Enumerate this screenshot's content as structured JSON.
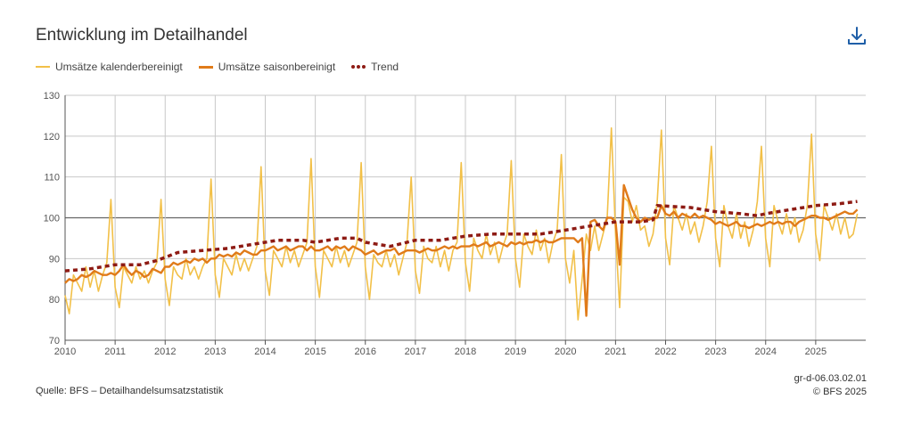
{
  "header": {
    "title": "Entwicklung im Detailhandel",
    "download_icon": "download-icon"
  },
  "legend": {
    "calendar": "Umsätze kalenderbereinigt",
    "seasonal": "Umsätze saisonbereinigt",
    "trend": "Trend"
  },
  "footer": {
    "source": "Quelle: BFS – Detailhandelsumsatzstatistik",
    "code": "gr-d-06.03.02.01",
    "copyright": "© BFS 2025"
  },
  "colors": {
    "calendar": "#f2c048",
    "seasonal": "#e07b1a",
    "trend": "#8e1b14",
    "grid": "#c8c8c8",
    "axis": "#555555"
  },
  "chart_data": {
    "type": "line",
    "title": "Entwicklung im Detailhandel",
    "xlabel": "",
    "ylabel": "",
    "ylim": [
      70,
      130
    ],
    "yticks": [
      70,
      80,
      90,
      100,
      110,
      120,
      130
    ],
    "xlim": [
      2010,
      2026
    ],
    "xticks": [
      2010,
      2011,
      2012,
      2013,
      2014,
      2015,
      2016,
      2017,
      2018,
      2019,
      2020,
      2021,
      2022,
      2023,
      2024,
      2025
    ],
    "grid": true,
    "reference_line": 100,
    "series": [
      {
        "name": "Umsätze kalenderbereinigt",
        "x_start": 2010.0,
        "x_step": 0.08333,
        "values": [
          81,
          76.5,
          86,
          84,
          82,
          88,
          83,
          87,
          82,
          86,
          89,
          104.5,
          83,
          78,
          88,
          86,
          84,
          88,
          85,
          87,
          84,
          87,
          89,
          104.5,
          85,
          78.5,
          88,
          86,
          85,
          90,
          86,
          88,
          85,
          88,
          90,
          109.5,
          86,
          80.5,
          90,
          88,
          86,
          91,
          87,
          90,
          87,
          90,
          93,
          112.5,
          87,
          81,
          92,
          90,
          88,
          93,
          89,
          92,
          88,
          91,
          94,
          114.5,
          88,
          80.5,
          92,
          90,
          88,
          93,
          89,
          92,
          88,
          91,
          94,
          113.5,
          88,
          80,
          91,
          89,
          88,
          92,
          88,
          91,
          86,
          90,
          94,
          110,
          87,
          81.5,
          93,
          90,
          89,
          93,
          88,
          92,
          87,
          92,
          94,
          113.5,
          89,
          82,
          95,
          92,
          90,
          96,
          91,
          94,
          89,
          93,
          96,
          114,
          90,
          83,
          96,
          93,
          91,
          97,
          92,
          95,
          89,
          94,
          97,
          115.5,
          90,
          84,
          92,
          75,
          85,
          96,
          92,
          98,
          92,
          96,
          100,
          122,
          96,
          78,
          105,
          104,
          99,
          103,
          97,
          98,
          93,
          96,
          104,
          121.5,
          95,
          88.5,
          103,
          100,
          97,
          101,
          96,
          99,
          94,
          98,
          104,
          117.5,
          95,
          88,
          103,
          98,
          95,
          101,
          95,
          99,
          93,
          97,
          104,
          117.5,
          95,
          88,
          103,
          99,
          96,
          101,
          96,
          100,
          94,
          97,
          103,
          120.5,
          96,
          89.5,
          103,
          100,
          97,
          101,
          96,
          100,
          95,
          96,
          101
        ]
      },
      {
        "name": "Umsätze saisonbereinigt",
        "x_start": 2010.0,
        "x_step": 0.08333,
        "values": [
          84,
          85,
          84.5,
          85,
          86,
          85.5,
          86,
          87,
          86.5,
          86,
          86,
          86.5,
          86,
          87,
          88.5,
          87,
          86,
          87,
          86.5,
          85.5,
          86,
          87.5,
          87,
          86.5,
          88,
          88,
          89,
          88.5,
          89,
          89.5,
          89,
          90,
          89.5,
          90,
          89,
          90,
          90,
          91,
          90.5,
          91,
          90.5,
          91.5,
          91,
          92,
          91.5,
          91,
          91,
          92,
          92,
          92.5,
          93,
          92,
          92.5,
          93,
          92,
          92.5,
          93,
          93,
          92,
          93,
          92,
          92,
          92.5,
          93,
          92,
          93,
          92.5,
          93,
          92,
          93,
          92.5,
          92,
          91,
          91.5,
          92,
          91,
          91.5,
          92,
          92,
          92.5,
          91,
          91.5,
          92,
          92,
          92,
          91.5,
          92,
          92.5,
          92,
          92,
          92.5,
          93,
          92.5,
          93,
          92.5,
          93,
          93,
          93,
          93.5,
          93,
          93.5,
          94,
          93,
          93.5,
          94,
          93.5,
          93,
          94,
          93.5,
          94,
          93.5,
          94,
          94,
          94.5,
          94,
          94.5,
          94,
          94,
          94.5,
          95,
          95,
          95,
          95,
          94,
          95,
          76,
          99,
          99.5,
          98,
          97,
          100,
          100,
          99,
          88.5,
          108,
          105,
          102,
          100,
          99,
          100,
          99.5,
          100,
          100,
          103,
          101,
          100.5,
          101.5,
          100,
          101,
          100.5,
          100,
          101,
          100,
          100.5,
          100,
          99.5,
          98.5,
          99,
          98.5,
          98,
          98.5,
          99,
          98,
          98,
          97.5,
          98,
          98.5,
          98,
          98.5,
          99,
          98.5,
          99,
          98.5,
          99,
          99,
          98,
          99,
          99.5,
          100,
          100.5,
          100.5,
          100,
          100,
          99.5,
          100,
          100.5,
          101,
          101.5,
          101,
          101,
          102
        ]
      },
      {
        "name": "Trend",
        "points": [
          [
            2010.0,
            87
          ],
          [
            2010.5,
            87.5
          ],
          [
            2011.0,
            88.5
          ],
          [
            2011.5,
            88.5
          ],
          [
            2011.83,
            89.5
          ],
          [
            2012.25,
            91.5
          ],
          [
            2012.75,
            92
          ],
          [
            2013.25,
            92.5
          ],
          [
            2013.75,
            93.5
          ],
          [
            2014.25,
            94.5
          ],
          [
            2014.75,
            94.5
          ],
          [
            2015.0,
            94
          ],
          [
            2015.5,
            95
          ],
          [
            2015.83,
            95
          ],
          [
            2016.0,
            94
          ],
          [
            2016.5,
            93
          ],
          [
            2017.0,
            94.5
          ],
          [
            2017.5,
            94.5
          ],
          [
            2018.0,
            95.5
          ],
          [
            2018.5,
            96
          ],
          [
            2019.0,
            96
          ],
          [
            2019.5,
            96
          ],
          [
            2020.0,
            97
          ],
          [
            2020.5,
            98
          ],
          [
            2021.0,
            99
          ],
          [
            2021.5,
            99
          ],
          [
            2021.75,
            99.5
          ],
          [
            2021.83,
            103
          ],
          [
            2022.5,
            102.5
          ],
          [
            2023.0,
            101.5
          ],
          [
            2023.5,
            101
          ],
          [
            2023.83,
            100.5
          ],
          [
            2024.0,
            101
          ],
          [
            2024.5,
            102
          ],
          [
            2025.0,
            103
          ],
          [
            2025.5,
            103.5
          ],
          [
            2025.83,
            104
          ]
        ]
      }
    ]
  }
}
